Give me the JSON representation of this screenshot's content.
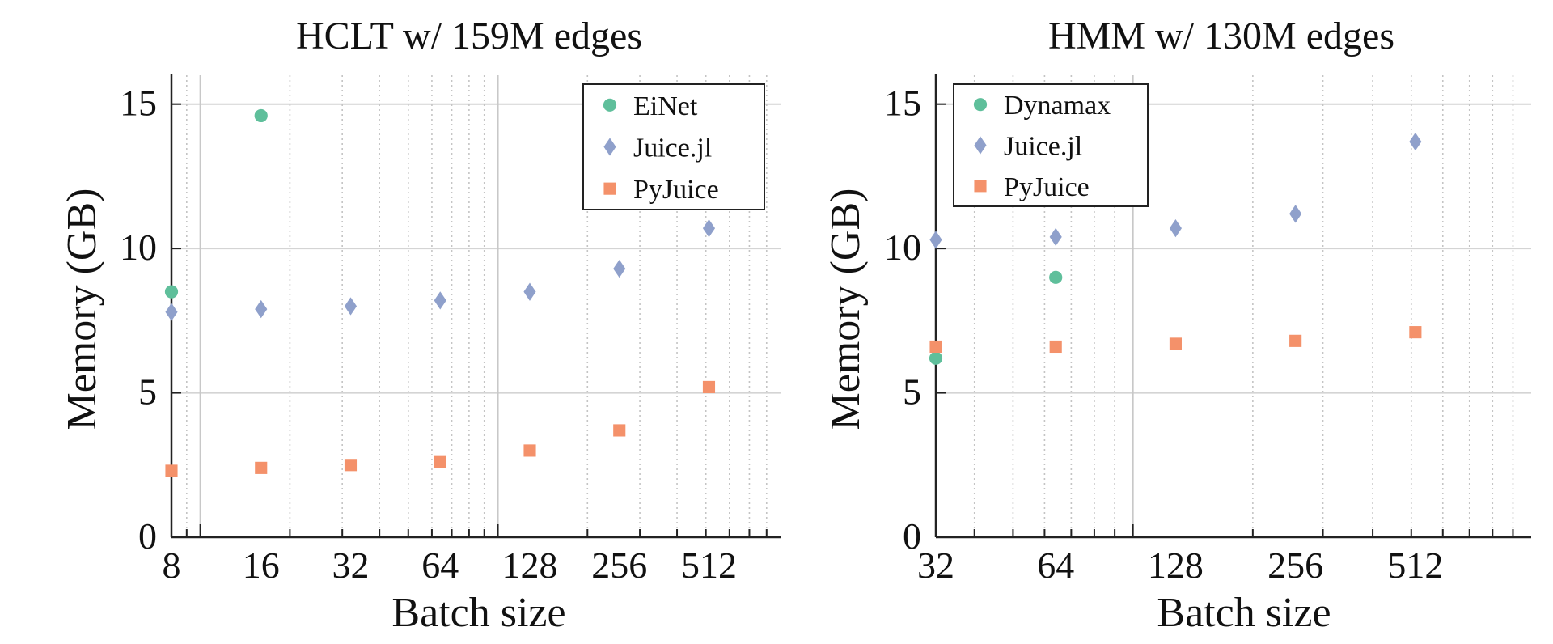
{
  "chart_data": [
    {
      "type": "scatter",
      "title": "HCLT w/ 159M edges",
      "xlabel": "Batch size",
      "ylabel": "Memory (GB)",
      "x_scale": "log2",
      "xlim": [
        8,
        891
      ],
      "ylim": [
        0,
        16
      ],
      "x_ticks": [
        8,
        16,
        32,
        64,
        128,
        256,
        512
      ],
      "x_tick_labels": [
        "8",
        "16",
        "32",
        "64",
        "128",
        "256",
        "512"
      ],
      "y_ticks": [
        0,
        5,
        10,
        15
      ],
      "y_tick_labels": [
        "0",
        "5",
        "10",
        "15"
      ],
      "grid": true,
      "legend_position": "top-right",
      "series": [
        {
          "name": "EiNet",
          "marker": "circle",
          "color": "#5fbf9b",
          "x": [
            8,
            16
          ],
          "values": [
            8.5,
            14.6
          ]
        },
        {
          "name": "Juice.jl",
          "marker": "diamond",
          "color": "#8fa0cb",
          "x": [
            8,
            16,
            32,
            64,
            128,
            256,
            512
          ],
          "values": [
            7.8,
            7.9,
            8.0,
            8.2,
            8.5,
            9.3,
            10.7
          ]
        },
        {
          "name": "PyJuice",
          "marker": "square",
          "color": "#f4916a",
          "x": [
            8,
            16,
            32,
            64,
            128,
            256,
            512
          ],
          "values": [
            2.3,
            2.4,
            2.5,
            2.6,
            3.0,
            3.7,
            5.2
          ]
        }
      ]
    },
    {
      "type": "scatter",
      "title": "HMM w/ 130M edges",
      "xlabel": "Batch size",
      "ylabel": "Memory (GB)",
      "x_scale": "log2",
      "xlim": [
        32,
        1000
      ],
      "ylim": [
        0,
        16
      ],
      "x_ticks": [
        32,
        64,
        128,
        256,
        512
      ],
      "x_tick_labels": [
        "32",
        "64",
        "128",
        "256",
        "512"
      ],
      "y_ticks": [
        0,
        5,
        10,
        15
      ],
      "y_tick_labels": [
        "0",
        "5",
        "10",
        "15"
      ],
      "grid": true,
      "legend_position": "top-left",
      "series": [
        {
          "name": "Dynamax",
          "marker": "circle",
          "color": "#5fbf9b",
          "x": [
            32,
            64
          ],
          "values": [
            6.2,
            9.0
          ]
        },
        {
          "name": "Juice.jl",
          "marker": "diamond",
          "color": "#8fa0cb",
          "x": [
            32,
            64,
            128,
            256,
            512
          ],
          "values": [
            10.3,
            10.4,
            10.7,
            11.2,
            13.7
          ]
        },
        {
          "name": "PyJuice",
          "marker": "square",
          "color": "#f4916a",
          "x": [
            32,
            64,
            128,
            256,
            512
          ],
          "values": [
            6.6,
            6.6,
            6.7,
            6.8,
            7.1
          ]
        }
      ]
    }
  ]
}
